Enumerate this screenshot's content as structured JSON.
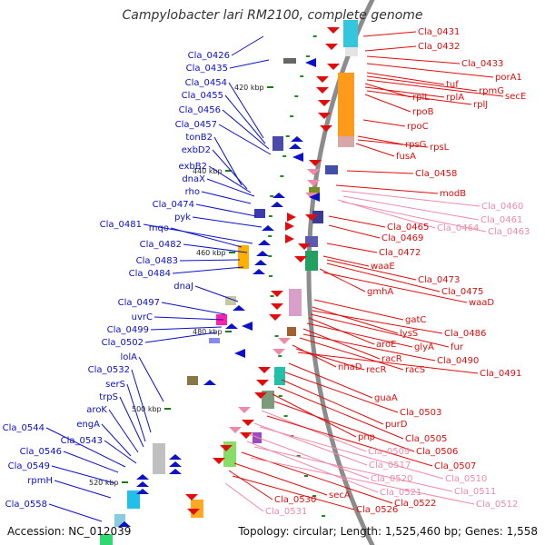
{
  "title": "Campylobacter lari RM2100, complete genome",
  "accession": "Accession: NC_012039",
  "topology": "Topology: circular; Length: 1,525,460 bp; Genes: 1,558",
  "colors": {
    "minus_strand": "#0b10c9",
    "plus_strand": "#e10c0c",
    "plus_strand_faded": "#f089a8",
    "ring": "#8c8c8c"
  },
  "kbp_ticks": [
    "420 kbp",
    "440 kbp",
    "460 kbp",
    "480 kbp",
    "500 kbp",
    "520 kbp"
  ],
  "left_labels": [
    "Cla_0426",
    "Cla_0435",
    "Cla_0454",
    "Cla_0455",
    "Cla_0456",
    "Cla_0457",
    "tonB2",
    "exbD2",
    "exbB2",
    "dnaX",
    "rho",
    "Cla_0474",
    "pyk",
    "Cla_0481",
    "mqo",
    "Cla_0482",
    "Cla_0483",
    "Cla_0484",
    "dnaJ",
    "Cla_0497",
    "uvrC",
    "Cla_0499",
    "Cla_0502",
    "lolA",
    "Cla_0532",
    "serS",
    "trpS",
    "aroK",
    "engA",
    "Cla_0543",
    "Cla_0544",
    "Cla_0546",
    "Cla_0549",
    "rpmH",
    "Cla_0558"
  ],
  "right_labels": [
    "Cla_0431",
    "Cla_0432",
    "Cla_0433",
    "porA1",
    "tuf",
    "rpmG",
    "secE",
    "rplL",
    "rplA",
    "rplJ",
    "rpoB",
    "rpoC",
    "rpsG",
    "rpsL",
    "fusA",
    "Cla_0458",
    "modB",
    "Cla_0460",
    "Cla_0461",
    "Cla_0464",
    "Cla_0463",
    "Cla_0465",
    "Cla_0469",
    "Cla_0472",
    "waaE",
    "Cla_0473",
    "Cla_0475",
    "gmhA",
    "waaD",
    "gatC",
    "lysS",
    "Cla_0486",
    "fur",
    "aroE",
    "glyA",
    "racR",
    "Cla_0490",
    "racS",
    "nhaD",
    "recR",
    "Cla_0491",
    "guaA",
    "Cla_0503",
    "purD",
    "Cla_0505",
    "pnp",
    "Cla_0506",
    "Cla_0509",
    "Cla_0507",
    "Cla_0517",
    "Cla_0510",
    "Cla_0520",
    "Cla_0521",
    "Cla_0511",
    "Cla_0522",
    "Cla_0512",
    "secA",
    "Cla_0530",
    "Cla_0526",
    "Cla_0531"
  ]
}
